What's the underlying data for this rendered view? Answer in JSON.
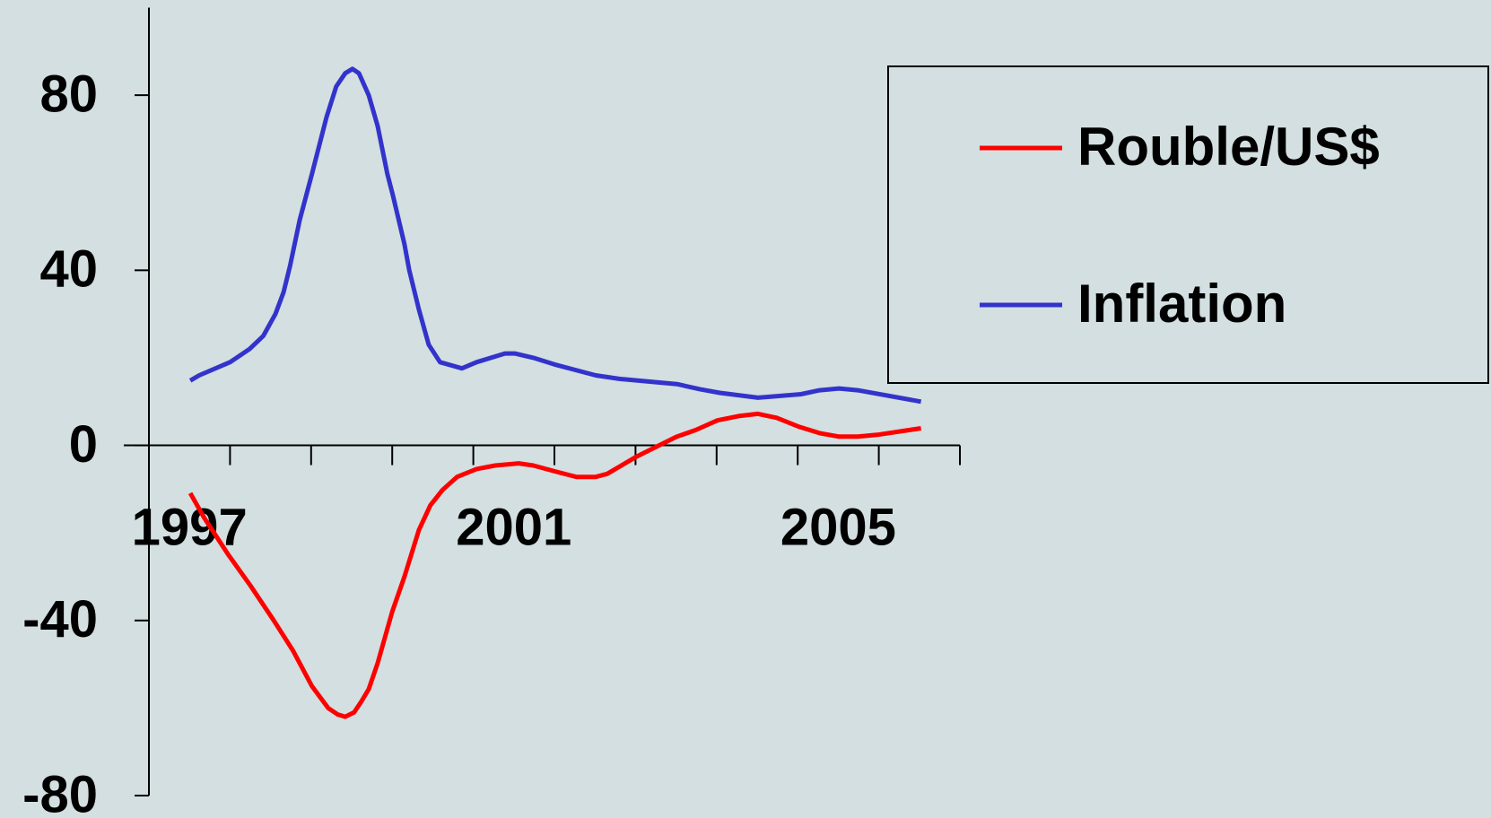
{
  "chart_data": {
    "type": "line",
    "ylim": [
      -80,
      100
    ],
    "yticks": [
      -80,
      -40,
      0,
      40,
      80
    ],
    "xlim": [
      1997,
      2007
    ],
    "xticks": [
      1997,
      1998,
      1999,
      2000,
      2001,
      2002,
      2003,
      2004,
      2005,
      2006,
      2007
    ],
    "xlabels": [
      1997,
      2001,
      2005
    ],
    "legend": "upper right",
    "series": [
      {
        "name": "Rouble/US$",
        "color": "#ff0000",
        "x": [
          1997.51,
          1997.68,
          1997.98,
          1998.25,
          1998.54,
          1998.78,
          1999.01,
          1999.21,
          1999.33,
          1999.42,
          1999.53,
          1999.62,
          1999.71,
          1999.82,
          2000.0,
          2000.15,
          2000.33,
          2000.47,
          2000.62,
          2000.8,
          2001.04,
          2001.27,
          2001.56,
          2001.74,
          2002.0,
          2002.27,
          2002.51,
          2002.65,
          2003.01,
          2003.27,
          2003.51,
          2003.74,
          2004.01,
          2004.27,
          2004.51,
          2004.74,
          2005.01,
          2005.27,
          2005.51,
          2005.74,
          2005.98,
          2006.52
        ],
        "values": [
          -10.9,
          -16.5,
          -25,
          -32,
          -40,
          -47,
          -55,
          -60,
          -61.5,
          -62,
          -61,
          -58.5,
          -55.7,
          -49.8,
          -38,
          -30,
          -19.3,
          -13.7,
          -10.2,
          -7.2,
          -5.4,
          -4.6,
          -4.1,
          -4.6,
          -5.9,
          -7.2,
          -7.2,
          -6.5,
          -2.6,
          -0.2,
          2,
          3.5,
          5.7,
          6.7,
          7.2,
          6.3,
          4.3,
          2.8,
          2,
          2,
          2.4,
          3.9
        ]
      },
      {
        "name": "Inflation",
        "color": "#3333cc",
        "x": [
          1997.51,
          1997.62,
          1998.0,
          1998.24,
          1998.41,
          1998.56,
          1998.66,
          1998.74,
          1998.86,
          1999.01,
          1999.19,
          1999.31,
          1999.42,
          1999.51,
          1999.59,
          1999.71,
          1999.82,
          1999.94,
          2000.01,
          2000.15,
          2000.21,
          2000.33,
          2000.45,
          2000.59,
          2000.86,
          2001.04,
          2001.39,
          2001.51,
          2001.74,
          2002.0,
          2002.51,
          2002.8,
          2003.51,
          2003.8,
          2004.04,
          2004.51,
          2005.04,
          2005.27,
          2005.51,
          2005.74,
          2006.52
        ],
        "values": [
          14.8,
          16,
          19,
          22,
          25,
          30,
          35,
          41,
          51.5,
          62,
          75,
          82,
          85,
          86,
          85,
          80,
          73,
          62,
          57,
          46,
          40,
          31,
          23,
          19,
          17.6,
          19,
          21,
          21,
          20,
          18.5,
          16,
          15.2,
          14,
          12.8,
          12,
          10.9,
          11.7,
          12.6,
          13,
          12.6,
          10
        ]
      }
    ]
  }
}
